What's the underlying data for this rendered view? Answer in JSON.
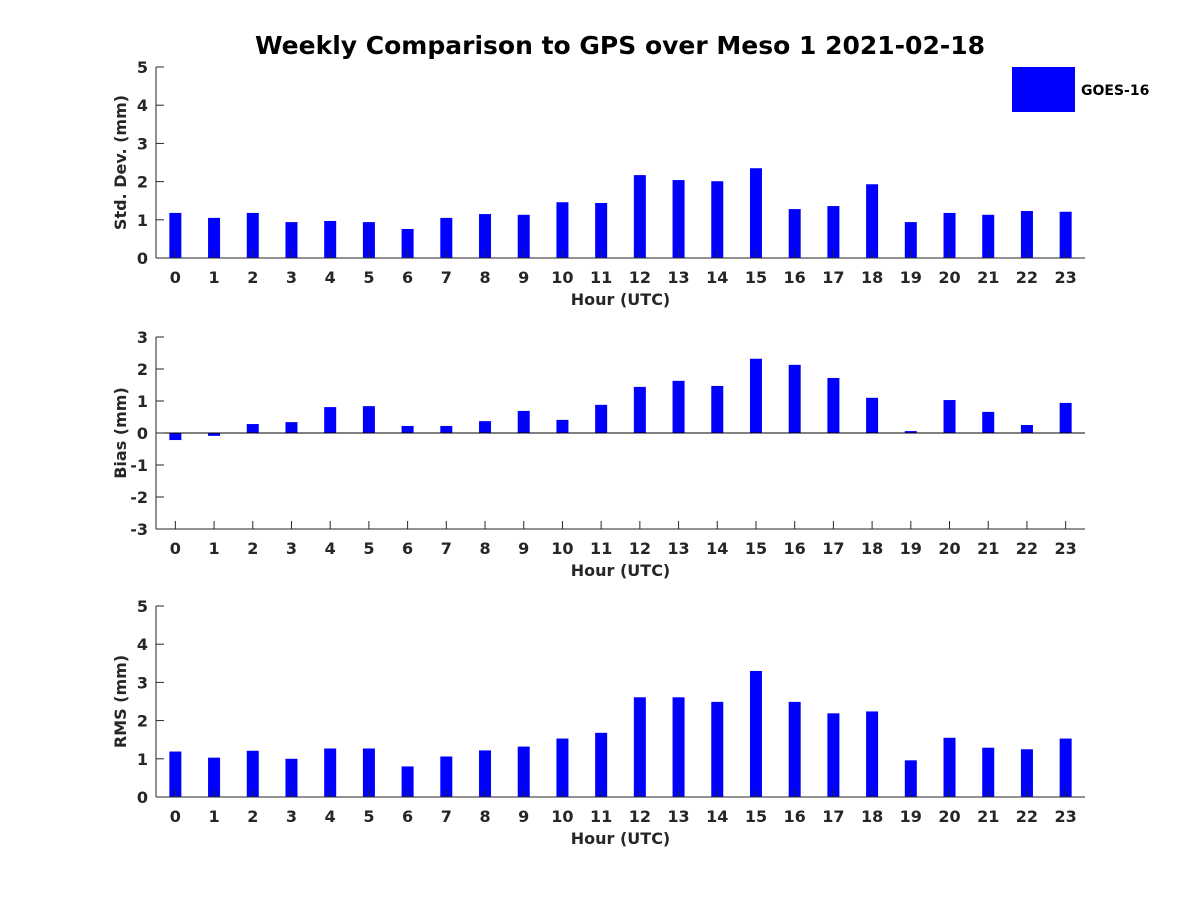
{
  "chart_data": {
    "type": "bar",
    "title": "Weekly Comparison to GPS over Meso 1 2021-02-18",
    "legend": {
      "position": "top-right",
      "entries": [
        {
          "name": "GOES-16",
          "color": "#0000ff"
        }
      ]
    },
    "panels": [
      {
        "id": "std",
        "ylabel": "Std. Dev. (mm)",
        "xlabel": "Hour (UTC)",
        "ylim": [
          0,
          5
        ],
        "yticks": [
          0,
          1,
          2,
          3,
          4,
          5
        ],
        "categories": [
          "0",
          "1",
          "2",
          "3",
          "4",
          "5",
          "6",
          "7",
          "8",
          "9",
          "10",
          "11",
          "12",
          "13",
          "14",
          "15",
          "16",
          "17",
          "18",
          "19",
          "20",
          "21",
          "22",
          "23"
        ],
        "series": [
          {
            "name": "GOES-16",
            "color": "#0000ff",
            "values": [
              1.18,
              1.05,
              1.18,
              0.94,
              0.97,
              0.94,
              0.76,
              1.05,
              1.15,
              1.13,
              1.46,
              1.44,
              2.17,
              2.04,
              2.01,
              2.35,
              1.28,
              1.36,
              1.93,
              0.94,
              1.18,
              1.13,
              1.23,
              1.21
            ]
          }
        ]
      },
      {
        "id": "bias",
        "ylabel": "Bias (mm)",
        "xlabel": "Hour (UTC)",
        "ylim": [
          -3,
          3
        ],
        "yticks": [
          -3,
          -2,
          -1,
          0,
          1,
          2,
          3
        ],
        "zero_line": true,
        "categories": [
          "0",
          "1",
          "2",
          "3",
          "4",
          "5",
          "6",
          "7",
          "8",
          "9",
          "10",
          "11",
          "12",
          "13",
          "14",
          "15",
          "16",
          "17",
          "18",
          "19",
          "20",
          "21",
          "22",
          "23"
        ],
        "series": [
          {
            "name": "GOES-16",
            "color": "#0000ff",
            "values": [
              -0.22,
              -0.09,
              0.28,
              0.34,
              0.81,
              0.84,
              0.22,
              0.22,
              0.37,
              0.69,
              0.41,
              0.88,
              1.44,
              1.63,
              1.47,
              2.32,
              2.13,
              1.72,
              1.1,
              0.06,
              1.03,
              0.66,
              0.25,
              0.94
            ]
          }
        ]
      },
      {
        "id": "rms",
        "ylabel": "RMS (mm)",
        "xlabel": "Hour (UTC)",
        "ylim": [
          0,
          5
        ],
        "yticks": [
          0,
          1,
          2,
          3,
          4,
          5
        ],
        "categories": [
          "0",
          "1",
          "2",
          "3",
          "4",
          "5",
          "6",
          "7",
          "8",
          "9",
          "10",
          "11",
          "12",
          "13",
          "14",
          "15",
          "16",
          "17",
          "18",
          "19",
          "20",
          "21",
          "22",
          "23"
        ],
        "series": [
          {
            "name": "GOES-16",
            "color": "#0000ff",
            "values": [
              1.19,
              1.03,
              1.21,
              1.0,
              1.27,
              1.27,
              0.8,
              1.06,
              1.22,
              1.32,
              1.53,
              1.68,
              2.61,
              2.61,
              2.49,
              3.3,
              2.49,
              2.19,
              2.24,
              0.96,
              1.55,
              1.29,
              1.25,
              1.53
            ]
          }
        ]
      }
    ]
  }
}
